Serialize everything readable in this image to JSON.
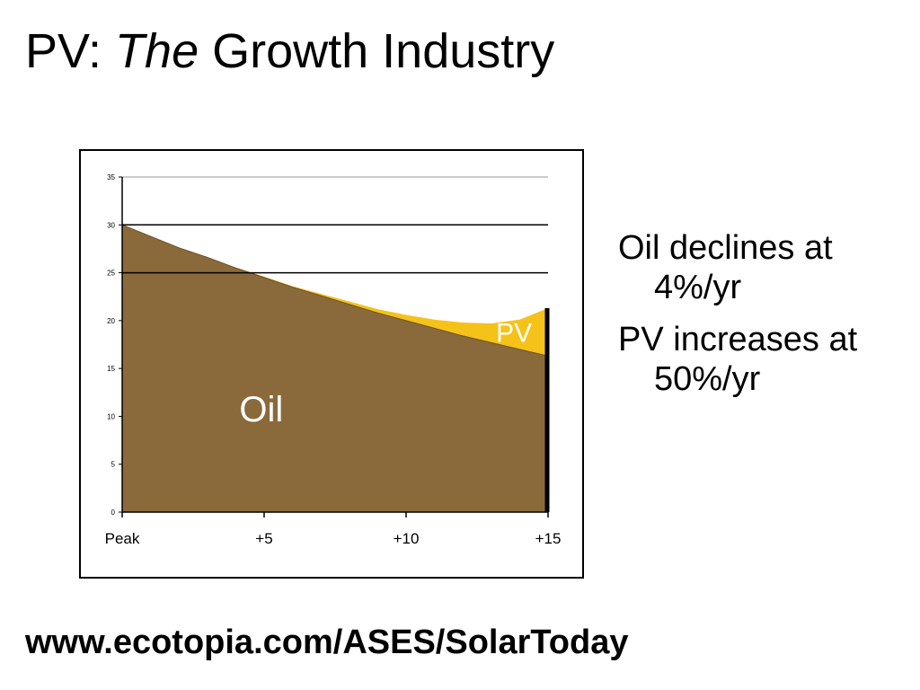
{
  "slide": {
    "title_prefix": "PV: ",
    "title_italic": "The",
    "title_suffix": " Growth Industry",
    "bullets": [
      "Oil declines at 4%/yr",
      "PV increases at 50%/yr"
    ],
    "footer": "www.ecotopia.com/ASES/SolarToday"
  },
  "colors": {
    "oil": "#8a6a3a",
    "oil_edge": "#6e5228",
    "pv": "#f5c21a",
    "label_text": "#ffffff"
  },
  "chart_data": {
    "type": "area",
    "title": "",
    "xlabel": "",
    "ylabel": "",
    "xlim": [
      0,
      15
    ],
    "ylim": [
      0,
      35
    ],
    "x_ticks": [
      0,
      5,
      10,
      15
    ],
    "x_tick_labels": [
      "Peak",
      "+5",
      "+10",
      "+15"
    ],
    "y_ticks": [
      0,
      5,
      10,
      15,
      20,
      25,
      30,
      35
    ],
    "y_tick_labels": [
      "0",
      "5",
      "10",
      "15",
      "20",
      "25",
      "30",
      "35"
    ],
    "gridlines_y": [
      30,
      25
    ],
    "stacked": true,
    "x": [
      0,
      1,
      2,
      3,
      4,
      5,
      6,
      7,
      8,
      9,
      10,
      11,
      12,
      13,
      14,
      15
    ],
    "series": [
      {
        "name": "Oil",
        "color_key": "oil",
        "values": [
          30.0,
          28.8,
          27.6,
          26.6,
          25.5,
          24.5,
          23.5,
          22.6,
          21.7,
          20.8,
          20.0,
          19.2,
          18.4,
          17.7,
          17.0,
          16.3
        ]
      },
      {
        "name": "PV",
        "color_key": "pv",
        "values": [
          0.0,
          0.0,
          0.0,
          0.0,
          0.05,
          0.1,
          0.1,
          0.2,
          0.3,
          0.4,
          0.6,
          0.9,
          1.4,
          2.0,
          3.1,
          5.0
        ]
      }
    ]
  }
}
